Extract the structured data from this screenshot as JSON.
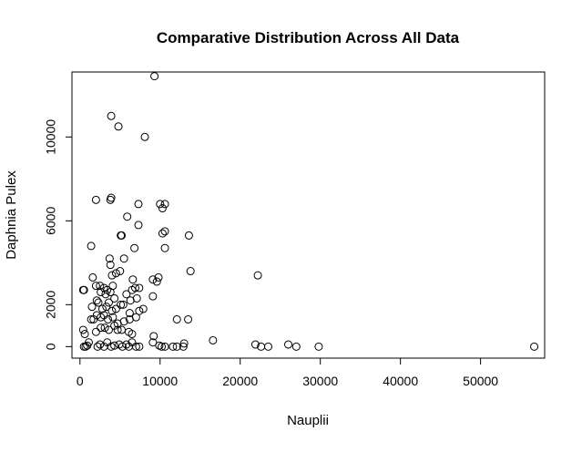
{
  "chart_data": {
    "type": "scatter",
    "title": "Comparative Distribution Across All Data",
    "xlabel": "Nauplii",
    "ylabel": "Daphnia Pulex",
    "xlim": [
      -1000,
      58000
    ],
    "ylim": [
      -550,
      13100
    ],
    "xticks": [
      0,
      10000,
      20000,
      30000,
      40000,
      50000
    ],
    "xtick_labels": [
      "0",
      "10000",
      "20000",
      "30000",
      "40000",
      "50000"
    ],
    "yticks": [
      0,
      2000,
      6000,
      10000
    ],
    "ytick_labels": [
      "0",
      "2000",
      "6000",
      "10000"
    ],
    "grid": false,
    "marker": "open-circle",
    "points": [
      [
        9300,
        12900
      ],
      [
        3900,
        11000
      ],
      [
        4800,
        10500
      ],
      [
        8100,
        10000
      ],
      [
        2000,
        7000
      ],
      [
        3800,
        7000
      ],
      [
        3900,
        7100
      ],
      [
        7300,
        6800
      ],
      [
        10000,
        6800
      ],
      [
        10600,
        6800
      ],
      [
        10300,
        6600
      ],
      [
        5900,
        6200
      ],
      [
        7300,
        5800
      ],
      [
        10300,
        5400
      ],
      [
        10600,
        5500
      ],
      [
        5100,
        5300
      ],
      [
        5200,
        5300
      ],
      [
        13600,
        5300
      ],
      [
        1400,
        4800
      ],
      [
        6800,
        4700
      ],
      [
        10600,
        4700
      ],
      [
        3700,
        4200
      ],
      [
        5500,
        4200
      ],
      [
        3800,
        3900
      ],
      [
        13800,
        3600
      ],
      [
        4000,
        3400
      ],
      [
        4500,
        3500
      ],
      [
        5000,
        3600
      ],
      [
        22200,
        3400
      ],
      [
        1600,
        3300
      ],
      [
        6600,
        3200
      ],
      [
        9100,
        3200
      ],
      [
        9600,
        3100
      ],
      [
        9800,
        3300
      ],
      [
        2000,
        2900
      ],
      [
        2500,
        2900
      ],
      [
        3000,
        2800
      ],
      [
        3400,
        2700
      ],
      [
        3800,
        2600
      ],
      [
        4100,
        2900
      ],
      [
        6900,
        2800
      ],
      [
        7400,
        2800
      ],
      [
        400,
        2700
      ],
      [
        500,
        2700
      ],
      [
        2600,
        2600
      ],
      [
        3200,
        2500
      ],
      [
        5800,
        2500
      ],
      [
        6500,
        2700
      ],
      [
        9100,
        2400
      ],
      [
        2100,
        2200
      ],
      [
        2300,
        2100
      ],
      [
        3600,
        2100
      ],
      [
        4300,
        2300
      ],
      [
        5100,
        2000
      ],
      [
        6300,
        2200
      ],
      [
        7100,
        2300
      ],
      [
        1500,
        1900
      ],
      [
        2800,
        1800
      ],
      [
        3300,
        1900
      ],
      [
        4000,
        1700
      ],
      [
        4500,
        1800
      ],
      [
        5400,
        2000
      ],
      [
        6200,
        1600
      ],
      [
        7400,
        1700
      ],
      [
        7900,
        1800
      ],
      [
        1400,
        1300
      ],
      [
        1700,
        1300
      ],
      [
        2100,
        1500
      ],
      [
        2600,
        1400
      ],
      [
        3000,
        1500
      ],
      [
        3500,
        1300
      ],
      [
        4100,
        1400
      ],
      [
        4700,
        1100
      ],
      [
        5500,
        1200
      ],
      [
        6200,
        1300
      ],
      [
        7000,
        1400
      ],
      [
        12100,
        1300
      ],
      [
        13500,
        1300
      ],
      [
        400,
        800
      ],
      [
        600,
        600
      ],
      [
        2000,
        700
      ],
      [
        2600,
        900
      ],
      [
        3100,
        900
      ],
      [
        3600,
        800
      ],
      [
        4300,
        1000
      ],
      [
        4700,
        800
      ],
      [
        5200,
        800
      ],
      [
        6100,
        700
      ],
      [
        6500,
        600
      ],
      [
        9200,
        500
      ],
      [
        16600,
        300
      ],
      [
        500,
        0
      ],
      [
        700,
        0
      ],
      [
        900,
        50
      ],
      [
        1100,
        200
      ],
      [
        2200,
        0
      ],
      [
        2500,
        100
      ],
      [
        3000,
        0
      ],
      [
        3400,
        200
      ],
      [
        3900,
        0
      ],
      [
        4300,
        50
      ],
      [
        4900,
        100
      ],
      [
        5300,
        0
      ],
      [
        5800,
        100
      ],
      [
        6100,
        0
      ],
      [
        6500,
        200
      ],
      [
        7000,
        0
      ],
      [
        7400,
        0
      ],
      [
        9100,
        200
      ],
      [
        9900,
        50
      ],
      [
        10200,
        0
      ],
      [
        10600,
        0
      ],
      [
        11600,
        0
      ],
      [
        12100,
        0
      ],
      [
        12900,
        0
      ],
      [
        13000,
        150
      ],
      [
        21900,
        100
      ],
      [
        22600,
        0
      ],
      [
        23500,
        0
      ],
      [
        26000,
        100
      ],
      [
        27000,
        0
      ],
      [
        29800,
        0
      ],
      [
        56700,
        0
      ]
    ]
  }
}
